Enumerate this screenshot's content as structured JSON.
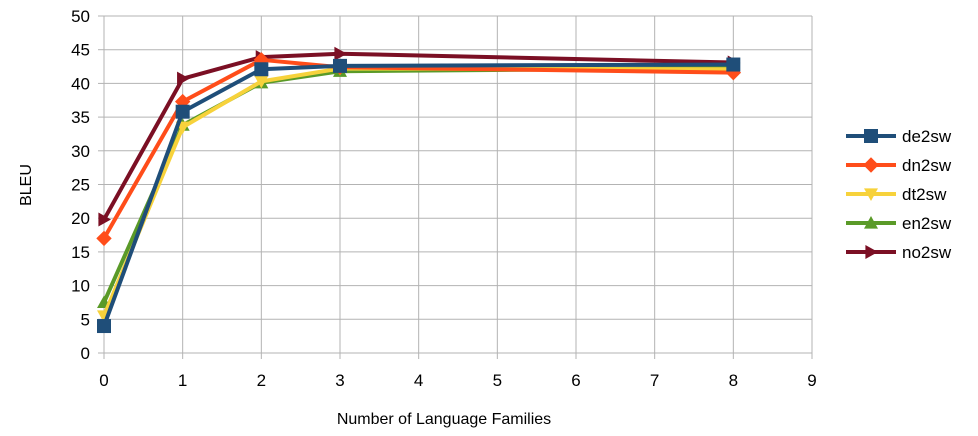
{
  "chart_data": {
    "type": "line",
    "title": "",
    "xlabel": "Number of Language Families",
    "ylabel": "BLEU",
    "xlim": [
      0,
      9
    ],
    "ylim": [
      0,
      50
    ],
    "xticks": [
      "0",
      "1",
      "2",
      "3",
      "4",
      "5",
      "6",
      "7",
      "8",
      "9"
    ],
    "yticks": [
      "0",
      "5",
      "10",
      "15",
      "20",
      "25",
      "30",
      "35",
      "40",
      "45",
      "50"
    ],
    "grid": true,
    "legend_position": "right",
    "x": [
      0,
      1,
      2,
      3,
      8
    ],
    "series": [
      {
        "name": "de2sw",
        "values": [
          4.0,
          35.8,
          42.1,
          42.6,
          42.8
        ],
        "color": "#1f4e79",
        "marker": "square"
      },
      {
        "name": "dn2sw",
        "values": [
          17.0,
          37.3,
          43.5,
          42.4,
          41.6
        ],
        "color": "#ff4d1a",
        "marker": "diamond"
      },
      {
        "name": "dt2sw",
        "values": [
          5.5,
          33.5,
          40.3,
          42.2,
          42.1
        ],
        "color": "#f7d23b",
        "marker": "triangle-down"
      },
      {
        "name": "en2sw",
        "values": [
          7.5,
          33.8,
          40.1,
          41.8,
          42.3
        ],
        "color": "#5a9a28",
        "marker": "triangle-up"
      },
      {
        "name": "no2sw",
        "values": [
          19.8,
          40.7,
          43.9,
          44.4,
          43.1
        ],
        "color": "#7b0f24",
        "marker": "triangle-right"
      }
    ]
  }
}
